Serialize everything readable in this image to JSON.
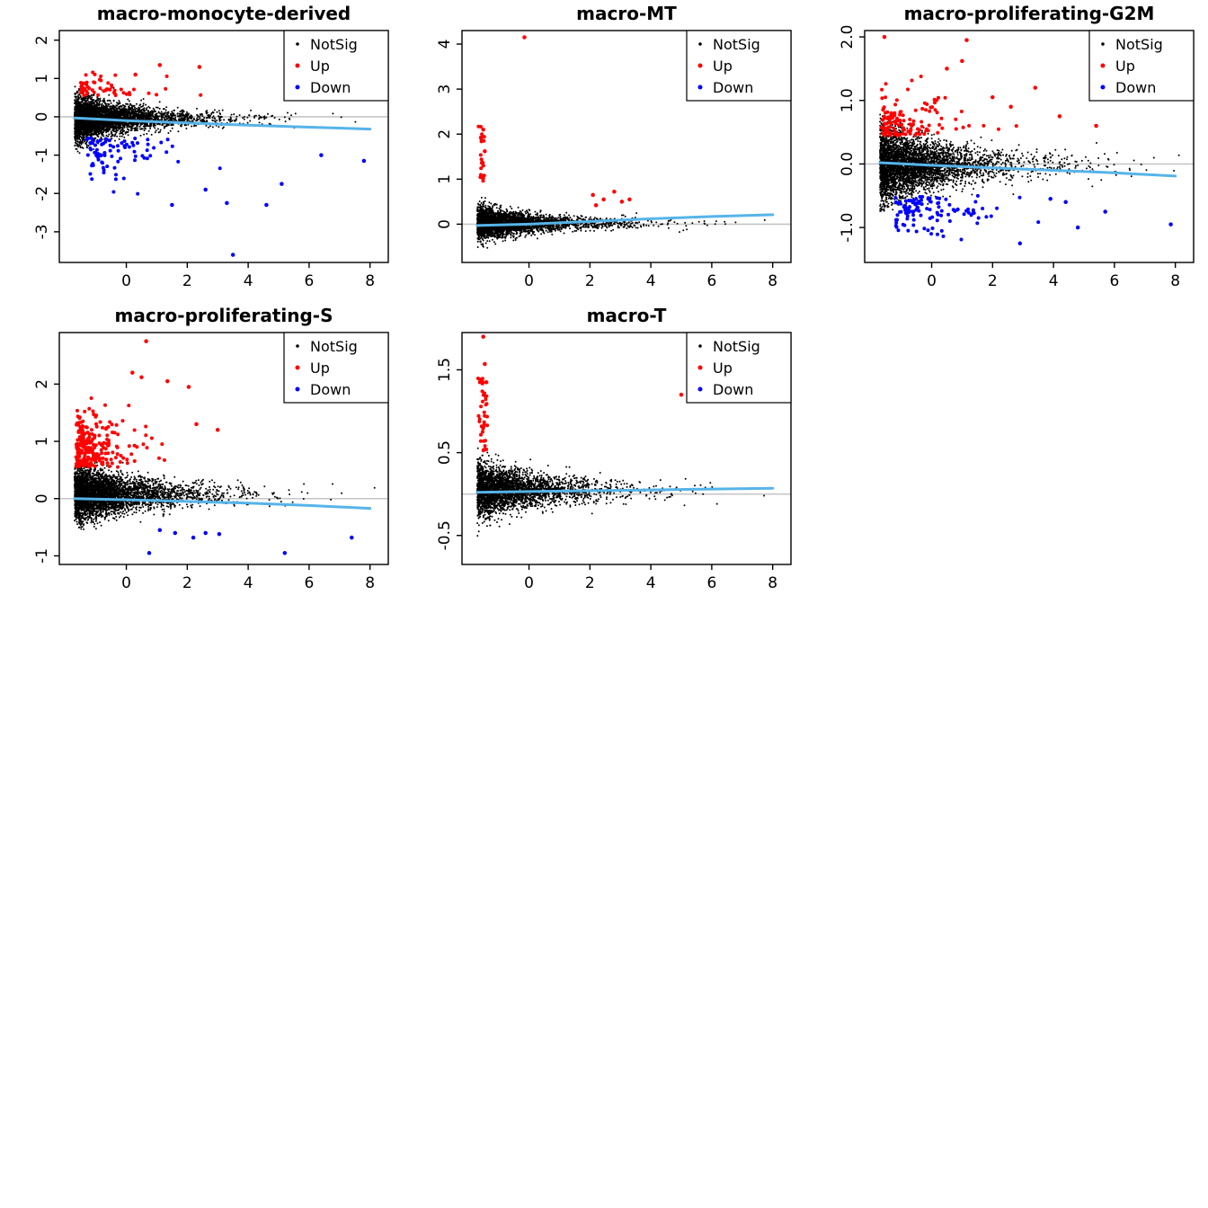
{
  "palette": {
    "notsig": "#000000",
    "up": "#FF0000",
    "down": "#0000FF",
    "trend": "#56B4E9",
    "zero_line": "#C6C6C6",
    "axis": "#000000",
    "background": "#FFFFFF"
  },
  "legend": {
    "items": [
      {
        "label": "NotSig",
        "color_key": "notsig"
      },
      {
        "label": "Up",
        "color_key": "up"
      },
      {
        "label": "Down",
        "color_key": "down"
      }
    ]
  },
  "chart_data": [
    {
      "type": "scatter",
      "title": "macro-monocyte-derived",
      "xlim": [
        -2.2,
        8.6
      ],
      "ylim": [
        -3.8,
        2.25
      ],
      "x_ticks": [
        0,
        2,
        4,
        6,
        8
      ],
      "x_tick_labels": [
        "0",
        "2",
        "4",
        "6",
        "8"
      ],
      "y_ticks": [
        -3,
        -2,
        -1,
        0,
        1,
        2
      ],
      "y_tick_labels": [
        "-3",
        "-2",
        "-1",
        "0",
        "1",
        "2"
      ],
      "zero_line": 0,
      "legend_position": "topright",
      "seed": 101,
      "clouds": [
        {
          "series": "NotSig",
          "color_key": "notsig",
          "size": 2,
          "kind": "funnel",
          "n": 4200,
          "x_min": -1.7,
          "x_scale": 1.25,
          "x_max": 8.2,
          "mean": -0.05,
          "sd_near": 0.33,
          "sd_far": 0.1,
          "decay": 1.6,
          "y_clip": [
            -0.95,
            0.8
          ]
        },
        {
          "series": "Up",
          "color_key": "up",
          "size": 4,
          "kind": "tail",
          "n": 55,
          "x_min": -1.5,
          "x_scale": 0.9,
          "x_max": 4.5,
          "base": 0.55,
          "dir": 1,
          "spread": 0.3,
          "y_clip": [
            0.45,
            1.35
          ]
        },
        {
          "series": "Down",
          "color_key": "down",
          "size": 4,
          "kind": "tail",
          "n": 85,
          "x_min": -1.3,
          "x_scale": 1.1,
          "x_max": 5.2,
          "base": -0.55,
          "dir": -1,
          "spread": 0.5,
          "y_clip": [
            -2.35,
            -0.45
          ]
        }
      ],
      "extra_points": {
        "up": [
          [
            1.1,
            1.35
          ],
          [
            2.4,
            1.3
          ],
          [
            0.3,
            1.1
          ]
        ],
        "down": [
          [
            1.5,
            -2.3
          ],
          [
            3.5,
            -3.6
          ],
          [
            4.6,
            -2.3
          ],
          [
            5.1,
            -1.75
          ],
          [
            3.3,
            -2.25
          ],
          [
            7.8,
            -1.15
          ],
          [
            6.4,
            -1.0
          ],
          [
            2.6,
            -1.9
          ]
        ]
      },
      "trend": [
        [
          -1.7,
          -0.03
        ],
        [
          0,
          -0.1
        ],
        [
          1,
          -0.13
        ],
        [
          2,
          -0.16
        ],
        [
          4,
          -0.22
        ],
        [
          6,
          -0.27
        ],
        [
          8,
          -0.32
        ]
      ]
    },
    {
      "type": "scatter",
      "title": "macro-MT",
      "xlim": [
        -2.2,
        8.6
      ],
      "ylim": [
        -0.85,
        4.3
      ],
      "x_ticks": [
        0,
        2,
        4,
        6,
        8
      ],
      "x_tick_labels": [
        "0",
        "2",
        "4",
        "6",
        "8"
      ],
      "y_ticks": [
        0,
        1,
        2,
        3,
        4
      ],
      "y_tick_labels": [
        "0",
        "1",
        "2",
        "3",
        "4"
      ],
      "zero_line": 0,
      "legend_position": "topright",
      "seed": 102,
      "clouds": [
        {
          "series": "NotSig",
          "color_key": "notsig",
          "size": 2,
          "kind": "funnel",
          "n": 3600,
          "x_min": -1.7,
          "x_scale": 1.25,
          "x_max": 8.2,
          "mean": 0.02,
          "sd_near": 0.18,
          "sd_far": 0.07,
          "decay": 1.6,
          "y_clip": [
            -0.6,
            0.75
          ]
        },
        {
          "series": "Up",
          "color_key": "up",
          "size": 4,
          "kind": "strip",
          "n": 22,
          "x0": -1.55,
          "xsd": 0.04,
          "y0": 0.95,
          "y1": 2.25
        }
      ],
      "extra_points": {
        "up": [
          [
            -0.15,
            4.15
          ],
          [
            -1.5,
            2.1
          ],
          [
            -1.45,
            1.62
          ],
          [
            2.1,
            0.65
          ],
          [
            2.45,
            0.55
          ],
          [
            2.8,
            0.72
          ],
          [
            3.05,
            0.5
          ],
          [
            2.2,
            0.42
          ],
          [
            3.3,
            0.55
          ],
          [
            -1.5,
            1.3
          ],
          [
            -1.55,
            1.05
          ]
        ],
        "down": []
      },
      "trend": [
        [
          -1.7,
          -0.03
        ],
        [
          0,
          0.0
        ],
        [
          2,
          0.06
        ],
        [
          4,
          0.12
        ],
        [
          6,
          0.17
        ],
        [
          8,
          0.21
        ]
      ]
    },
    {
      "type": "scatter",
      "title": "macro-proliferating-G2M",
      "xlim": [
        -2.2,
        8.6
      ],
      "ylim": [
        -1.55,
        2.1
      ],
      "x_ticks": [
        0,
        2,
        4,
        6,
        8
      ],
      "x_tick_labels": [
        "0",
        "2",
        "4",
        "6",
        "8"
      ],
      "y_ticks": [
        -1,
        0,
        1,
        2
      ],
      "y_tick_labels": [
        "-1.0",
        "0.0",
        "1.0",
        "2.0"
      ],
      "zero_line": 0,
      "legend_position": "topright",
      "seed": 103,
      "clouds": [
        {
          "series": "NotSig",
          "color_key": "notsig",
          "size": 2,
          "kind": "funnel",
          "n": 4200,
          "x_min": -1.7,
          "x_scale": 1.35,
          "x_max": 8.2,
          "mean": -0.02,
          "sd_near": 0.32,
          "sd_far": 0.12,
          "decay": 1.6,
          "y_clip": [
            -0.75,
            0.8
          ]
        },
        {
          "series": "Up",
          "color_key": "up",
          "size": 4,
          "kind": "tail",
          "n": 130,
          "x_min": -1.65,
          "x_scale": 0.8,
          "x_max": 3.2,
          "base": 0.45,
          "dir": 1,
          "spread": 0.35,
          "y_clip": [
            0.4,
            1.6
          ]
        },
        {
          "series": "Down",
          "color_key": "down",
          "size": 4,
          "kind": "tail",
          "n": 110,
          "x_min": -1.2,
          "x_scale": 1.2,
          "x_max": 3.6,
          "base": -0.5,
          "dir": -1,
          "spread": 0.3,
          "y_clip": [
            -1.3,
            -0.45
          ]
        }
      ],
      "extra_points": {
        "up": [
          [
            -1.55,
            2.0
          ],
          [
            1.15,
            1.95
          ],
          [
            1.0,
            1.62
          ],
          [
            3.4,
            1.2
          ],
          [
            2.0,
            1.05
          ],
          [
            4.2,
            0.75
          ],
          [
            5.4,
            0.6
          ],
          [
            0.5,
            1.5
          ],
          [
            2.6,
            0.9
          ]
        ],
        "down": [
          [
            4.4,
            -0.6
          ],
          [
            5.7,
            -0.75
          ],
          [
            7.85,
            -0.95
          ],
          [
            3.9,
            -0.55
          ],
          [
            4.8,
            -1.0
          ],
          [
            2.9,
            -1.25
          ]
        ]
      },
      "trend": [
        [
          -1.7,
          0.02
        ],
        [
          0,
          -0.02
        ],
        [
          2,
          -0.06
        ],
        [
          4,
          -0.1
        ],
        [
          6,
          -0.14
        ],
        [
          8,
          -0.19
        ]
      ]
    },
    {
      "type": "scatter",
      "title": "macro-proliferating-S",
      "xlim": [
        -2.2,
        8.6
      ],
      "ylim": [
        -1.15,
        2.9
      ],
      "x_ticks": [
        0,
        2,
        4,
        6,
        8
      ],
      "x_tick_labels": [
        "0",
        "2",
        "4",
        "6",
        "8"
      ],
      "y_ticks": [
        -1,
        0,
        1,
        2
      ],
      "y_tick_labels": [
        "-1",
        "0",
        "1",
        "2"
      ],
      "zero_line": 0,
      "legend_position": "topright",
      "seed": 104,
      "clouds": [
        {
          "series": "NotSig",
          "color_key": "notsig",
          "size": 2,
          "kind": "funnel",
          "n": 4200,
          "x_min": -1.7,
          "x_scale": 1.3,
          "x_max": 8.2,
          "mean": 0.08,
          "sd_near": 0.27,
          "sd_far": 0.1,
          "decay": 1.6,
          "y_clip": [
            -0.55,
            0.7
          ]
        },
        {
          "series": "Up",
          "color_key": "up",
          "size": 4,
          "kind": "tail",
          "n": 260,
          "x_min": -1.65,
          "x_scale": 0.6,
          "x_max": 3.2,
          "base": 0.55,
          "dir": 1,
          "spread": 0.45,
          "y_clip": [
            0.45,
            2.3
          ]
        }
      ],
      "extra_points": {
        "up": [
          [
            0.65,
            2.75
          ],
          [
            1.35,
            2.05
          ],
          [
            2.05,
            1.95
          ],
          [
            3.0,
            1.2
          ],
          [
            0.2,
            2.2
          ],
          [
            0.5,
            2.12
          ],
          [
            2.3,
            1.3
          ]
        ],
        "down": [
          [
            0.75,
            -0.95
          ],
          [
            1.6,
            -0.6
          ],
          [
            2.2,
            -0.68
          ],
          [
            2.6,
            -0.6
          ],
          [
            3.05,
            -0.62
          ],
          [
            5.2,
            -0.95
          ],
          [
            7.4,
            -0.68
          ],
          [
            1.1,
            -0.55
          ]
        ]
      },
      "trend": [
        [
          -1.7,
          0.0
        ],
        [
          0,
          -0.02
        ],
        [
          2,
          -0.05
        ],
        [
          4,
          -0.08
        ],
        [
          6,
          -0.12
        ],
        [
          8,
          -0.17
        ]
      ]
    },
    {
      "type": "scatter",
      "title": "macro-T",
      "xlim": [
        -2.2,
        8.6
      ],
      "ylim": [
        -0.85,
        1.95
      ],
      "x_ticks": [
        0,
        2,
        4,
        6,
        8
      ],
      "x_tick_labels": [
        "0",
        "2",
        "4",
        "6",
        "8"
      ],
      "y_ticks": [
        -0.5,
        0.5,
        1.5
      ],
      "y_tick_labels": [
        "-0.5",
        "0.5",
        "1.5"
      ],
      "zero_line": 0,
      "legend_position": "topright",
      "seed": 105,
      "clouds": [
        {
          "series": "NotSig",
          "color_key": "notsig",
          "size": 2,
          "kind": "funnel",
          "n": 3200,
          "x_min": -1.7,
          "x_scale": 1.3,
          "x_max": 8.2,
          "mean": 0.05,
          "sd_near": 0.17,
          "sd_far": 0.07,
          "decay": 1.6,
          "y_clip": [
            -0.65,
            0.6
          ]
        },
        {
          "series": "Up",
          "color_key": "up",
          "size": 4,
          "kind": "strip",
          "n": 40,
          "x0": -1.5,
          "xsd": 0.07,
          "y0": 0.5,
          "y1": 1.42
        }
      ],
      "extra_points": {
        "up": [
          [
            -1.5,
            1.9
          ],
          [
            -1.45,
            1.57
          ],
          [
            5.0,
            1.2
          ],
          [
            -1.4,
            1.35
          ]
        ],
        "down": []
      },
      "trend": [
        [
          -1.7,
          0.02
        ],
        [
          0,
          0.03
        ],
        [
          2,
          0.04
        ],
        [
          4,
          0.05
        ],
        [
          6,
          0.06
        ],
        [
          8,
          0.07
        ]
      ]
    }
  ]
}
